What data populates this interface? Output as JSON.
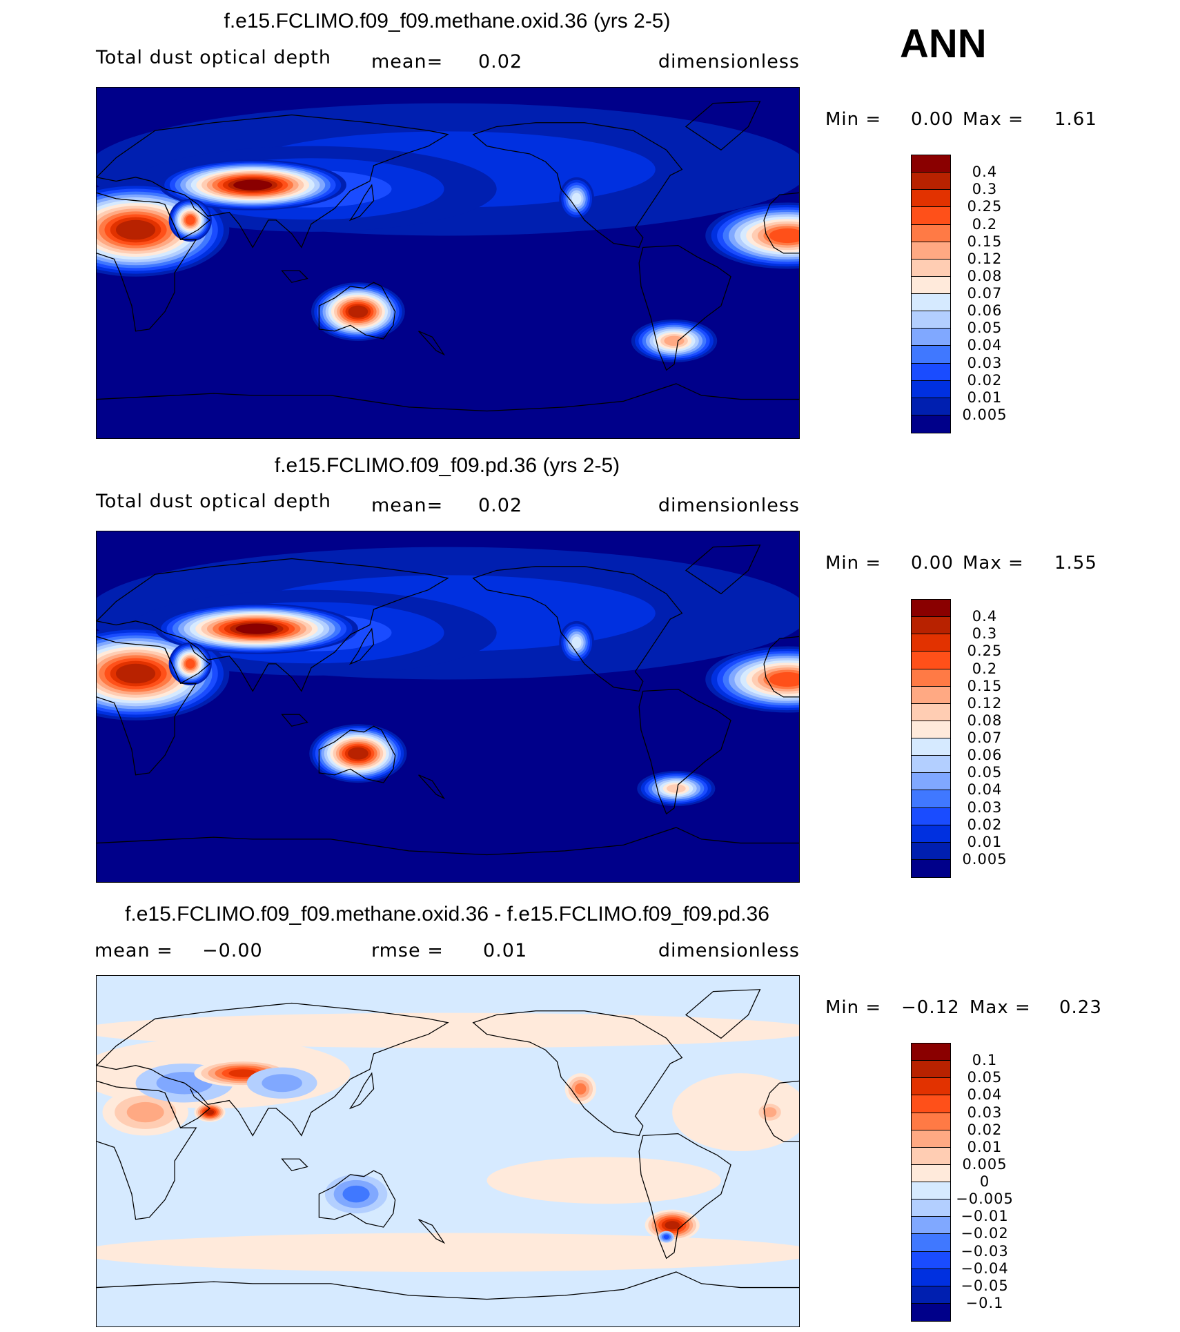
{
  "season": "ANN",
  "chart_data": {
    "type": "heatmap",
    "panels": [
      {
        "title": "f.e15.FCLIMO.f09_f09.methane.oxid.36 (yrs 2-5)",
        "variable": "Total dust optical depth",
        "stat1_label": "mean=",
        "stat1_value": "0.02",
        "units": "dimensionless",
        "min_label": "Min =",
        "min_value": "0.00",
        "max_label": "Max =",
        "max_value": "1.61",
        "levels": [
          "0.4",
          "0.3",
          "0.25",
          "0.2",
          "0.15",
          "0.12",
          "0.08",
          "0.07",
          "0.06",
          "0.05",
          "0.04",
          "0.03",
          "0.02",
          "0.01",
          "0.005"
        ],
        "thresholds": [
          0.005,
          0.01,
          0.02,
          0.03,
          0.04,
          0.05,
          0.06,
          0.07,
          0.08,
          0.12,
          0.15,
          0.2,
          0.25,
          0.3,
          0.4
        ],
        "base_value": 0.003,
        "features": [
          {
            "lon": 180,
            "lat": 48,
            "rx": 185,
            "ry": 34,
            "v": 0.012
          },
          {
            "lon": 110,
            "lat": 38,
            "rx": 95,
            "ry": 22,
            "v": 0.028
          },
          {
            "lon": 20,
            "lat": 17,
            "rx": 48,
            "ry": 24,
            "v": 0.38
          },
          {
            "lon": 354,
            "lat": 14,
            "rx": 42,
            "ry": 17,
            "v": 0.2
          },
          {
            "lon": 80,
            "lat": 40,
            "rx": 48,
            "ry": 13,
            "v": 0.45
          },
          {
            "lon": 48,
            "lat": 22,
            "rx": 11,
            "ry": 11,
            "v": 0.22
          },
          {
            "lon": 134,
            "lat": -25,
            "rx": 24,
            "ry": 15,
            "v": 0.3
          },
          {
            "lon": 296,
            "lat": -40,
            "rx": 22,
            "ry": 11,
            "v": 0.12
          },
          {
            "lon": 246,
            "lat": 33,
            "rx": 9,
            "ry": 11,
            "v": 0.06
          }
        ]
      },
      {
        "title": "f.e15.FCLIMO.f09_f09.pd.36 (yrs 2-5)",
        "variable": "Total dust optical depth",
        "stat1_label": "mean=",
        "stat1_value": "0.02",
        "units": "dimensionless",
        "min_label": "Min =",
        "min_value": "0.00",
        "max_label": "Max =",
        "max_value": "1.55",
        "levels": [
          "0.4",
          "0.3",
          "0.25",
          "0.2",
          "0.15",
          "0.12",
          "0.08",
          "0.07",
          "0.06",
          "0.05",
          "0.04",
          "0.03",
          "0.02",
          "0.01",
          "0.005"
        ],
        "thresholds": [
          0.005,
          0.01,
          0.02,
          0.03,
          0.04,
          0.05,
          0.06,
          0.07,
          0.08,
          0.12,
          0.15,
          0.2,
          0.25,
          0.3,
          0.4
        ],
        "base_value": 0.003,
        "features": [
          {
            "lon": 180,
            "lat": 48,
            "rx": 185,
            "ry": 34,
            "v": 0.012
          },
          {
            "lon": 110,
            "lat": 38,
            "rx": 95,
            "ry": 22,
            "v": 0.028
          },
          {
            "lon": 20,
            "lat": 17,
            "rx": 48,
            "ry": 24,
            "v": 0.38
          },
          {
            "lon": 354,
            "lat": 14,
            "rx": 42,
            "ry": 17,
            "v": 0.2
          },
          {
            "lon": 82,
            "lat": 40,
            "rx": 52,
            "ry": 13,
            "v": 0.45
          },
          {
            "lon": 48,
            "lat": 22,
            "rx": 11,
            "ry": 11,
            "v": 0.2
          },
          {
            "lon": 134,
            "lat": -24,
            "rx": 25,
            "ry": 15,
            "v": 0.3
          },
          {
            "lon": 297,
            "lat": -42,
            "rx": 20,
            "ry": 9,
            "v": 0.1
          },
          {
            "lon": 246,
            "lat": 33,
            "rx": 9,
            "ry": 11,
            "v": 0.06
          }
        ]
      },
      {
        "title": "f.e15.FCLIMO.f09_f09.methane.oxid.36 - f.e15.FCLIMO.f09_f09.pd.36",
        "stat1_label": "mean =",
        "stat1_value": "−0.00",
        "stat2_label": "rmse =",
        "stat2_value": "0.01",
        "units": "dimensionless",
        "min_label": "Min =",
        "min_value": "−0.12",
        "max_label": "Max =",
        "max_value": "0.23",
        "levels": [
          "0.1",
          "0.05",
          "0.04",
          "0.03",
          "0.02",
          "0.01",
          "0.005",
          "0",
          "−0.005",
          "−0.01",
          "−0.02",
          "−0.03",
          "−0.04",
          "−0.05",
          "−0.1"
        ],
        "thresholds": [
          -0.1,
          -0.05,
          -0.04,
          -0.03,
          -0.02,
          -0.01,
          -0.005,
          0,
          0.005,
          0.01,
          0.02,
          0.03,
          0.04,
          0.05,
          0.1
        ],
        "base_value": -0.002,
        "features": [
          {
            "lon": 180,
            "lat": -52,
            "rx": 190,
            "ry": 10,
            "v": 0.002
          },
          {
            "lon": 180,
            "lat": 62,
            "rx": 190,
            "ry": 9,
            "v": 0.002
          },
          {
            "lon": 60,
            "lat": 40,
            "rx": 70,
            "ry": 18,
            "v": 0.002
          },
          {
            "lon": 260,
            "lat": -15,
            "rx": 60,
            "ry": 12,
            "v": 0.002
          },
          {
            "lon": 330,
            "lat": 20,
            "rx": 35,
            "ry": 20,
            "v": 0.002
          },
          {
            "lon": 25,
            "lat": 20,
            "rx": 22,
            "ry": 12,
            "v": 0.012
          },
          {
            "lon": 45,
            "lat": 35,
            "rx": 25,
            "ry": 10,
            "v": -0.015
          },
          {
            "lon": 75,
            "lat": 40,
            "rx": 25,
            "ry": 7,
            "v": 0.04
          },
          {
            "lon": 95,
            "lat": 35,
            "rx": 18,
            "ry": 8,
            "v": -0.015
          },
          {
            "lon": 58,
            "lat": 20,
            "rx": 8,
            "ry": 5,
            "v": 0.05
          },
          {
            "lon": 133,
            "lat": -22,
            "rx": 16,
            "ry": 10,
            "v": -0.03
          },
          {
            "lon": 295,
            "lat": -38,
            "rx": 14,
            "ry": 8,
            "v": 0.05
          },
          {
            "lon": 292,
            "lat": -44,
            "rx": 4,
            "ry": 3,
            "v": -0.04
          },
          {
            "lon": 248,
            "lat": 32,
            "rx": 8,
            "ry": 8,
            "v": 0.02
          },
          {
            "lon": 345,
            "lat": 20,
            "rx": 8,
            "ry": 6,
            "v": 0.01
          }
        ]
      }
    ],
    "colors_low_to_high": [
      "#00008a",
      "#001fb0",
      "#0030e0",
      "#1a4cff",
      "#4078ff",
      "#80a8ff",
      "#b3cfff",
      "#d6eaff",
      "#ffeadb",
      "#ffcdb3",
      "#ffa983",
      "#ff7a45",
      "#ff5019",
      "#e23200",
      "#b82200",
      "#8a0000"
    ],
    "xlim_lon": [
      0,
      360
    ],
    "ylim_lat": [
      -90,
      90
    ]
  }
}
